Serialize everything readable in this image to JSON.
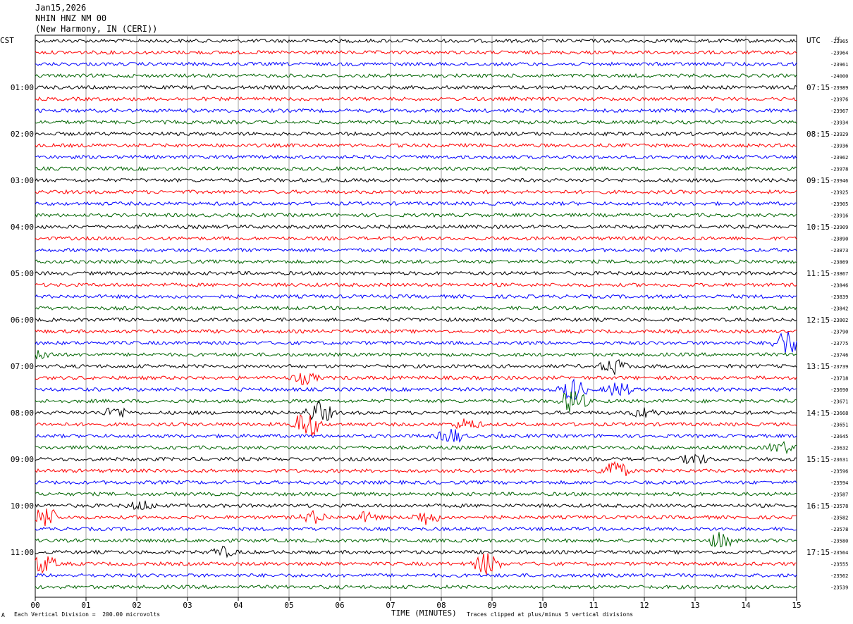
{
  "header": {
    "date": "Jan15,2026",
    "station": "NHIN HNZ NM 00",
    "location": "(New Harmony, IN (CERI))"
  },
  "chart_data": {
    "type": "line",
    "title": "",
    "xlabel": "TIME (MINUTES)",
    "left_axis_label": "CST",
    "right_axis_label": "UTC",
    "dc_label": "DC",
    "xlim": [
      0,
      15
    ],
    "x_ticks": [
      "00",
      "01",
      "02",
      "03",
      "04",
      "05",
      "06",
      "07",
      "08",
      "09",
      "10",
      "11",
      "12",
      "13",
      "14",
      "15"
    ],
    "left_hour_labels": [
      "01:00",
      "02:00",
      "03:00",
      "04:00",
      "05:00",
      "06:00",
      "07:00",
      "08:00",
      "09:00",
      "10:00",
      "11:00"
    ],
    "right_hour_labels": [
      "07:15",
      "08:15",
      "09:15",
      "10:15",
      "11:15",
      "12:15",
      "13:15",
      "14:15",
      "15:15",
      "16:15",
      "17:15"
    ],
    "first_labeled_trace_row": 4,
    "rows_per_hour": 4,
    "trace_colors": [
      "#000000",
      "#ff0000",
      "#0000ff",
      "#006400"
    ],
    "dc_offsets": [
      -23965,
      -23964,
      -23961,
      -24000,
      -23989,
      -23976,
      -23967,
      -23934,
      -23929,
      -23936,
      -23962,
      -23978,
      -23946,
      -23925,
      -23905,
      -23916,
      -23909,
      -23890,
      -23873,
      -23869,
      -23867,
      -23846,
      -23839,
      -23842,
      -23802,
      -23790,
      -23775,
      -23746,
      -23739,
      -23718,
      -23690,
      -23671,
      -23668,
      -23651,
      -23645,
      -23632,
      -23631,
      -23596,
      -23594,
      -23587,
      -23578,
      -23582,
      -23578,
      -23580,
      -23564,
      -23555,
      -23562,
      -23539
    ],
    "events": [
      {
        "row": 26,
        "minute": 14.8,
        "amp": 3.5
      },
      {
        "row": 27,
        "minute": 0.1,
        "amp": 1.2
      },
      {
        "row": 28,
        "minute": 11.4,
        "amp": 2.0
      },
      {
        "row": 29,
        "minute": 5.3,
        "amp": 1.5
      },
      {
        "row": 30,
        "minute": 11.5,
        "amp": 2.0
      },
      {
        "row": 30,
        "minute": 10.6,
        "amp": 3.0
      },
      {
        "row": 31,
        "minute": 10.6,
        "amp": 3.5
      },
      {
        "row": 32,
        "minute": 5.6,
        "amp": 3.0
      },
      {
        "row": 32,
        "minute": 1.6,
        "amp": 1.5
      },
      {
        "row": 32,
        "minute": 12.0,
        "amp": 1.2
      },
      {
        "row": 33,
        "minute": 5.35,
        "amp": 4.0
      },
      {
        "row": 33,
        "minute": 8.5,
        "amp": 1.5
      },
      {
        "row": 34,
        "minute": 8.2,
        "amp": 2.0
      },
      {
        "row": 35,
        "minute": 14.7,
        "amp": 1.5
      },
      {
        "row": 36,
        "minute": 13.0,
        "amp": 1.5
      },
      {
        "row": 37,
        "minute": 11.4,
        "amp": 3.0
      },
      {
        "row": 40,
        "minute": 2.1,
        "amp": 1.2
      },
      {
        "row": 41,
        "minute": 0.2,
        "amp": 3.0
      },
      {
        "row": 41,
        "minute": 5.5,
        "amp": 1.5
      },
      {
        "row": 41,
        "minute": 7.7,
        "amp": 1.8
      },
      {
        "row": 41,
        "minute": 6.5,
        "amp": 1.2
      },
      {
        "row": 43,
        "minute": 13.5,
        "amp": 2.0
      },
      {
        "row": 44,
        "minute": 3.7,
        "amp": 1.2
      },
      {
        "row": 45,
        "minute": 0.15,
        "amp": 2.5
      },
      {
        "row": 45,
        "minute": 8.9,
        "amp": 3.0
      }
    ]
  },
  "footer": {
    "scale_note": "Each Vertical Division =  200.00 microvolts",
    "clip_note": "Traces clipped at plus/minus 5 vertical divisions",
    "corner_mark": "A"
  }
}
